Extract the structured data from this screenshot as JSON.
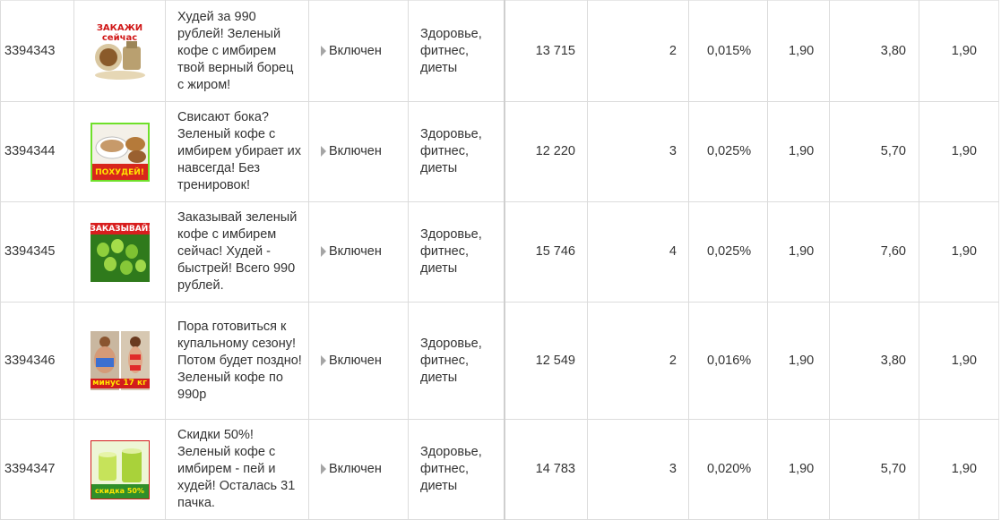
{
  "rows": [
    {
      "id": "3394343",
      "image_icon": "ad-banner-order-now-icon",
      "image_label": "ЗАКАЖИ сейчас",
      "text": "Худей за 990 рублей! Зеленый кофе с имбирем твой верный борец с жиром!",
      "status": "Включен",
      "category": "Здоровье, фитнес, диеты",
      "views": "13 715",
      "clicks": "2",
      "ctr": "0,015%",
      "cpc": "1,90",
      "spent": "3,80",
      "price": "1,90"
    },
    {
      "id": "3394344",
      "image_icon": "ad-banner-tea-cup-icon",
      "image_label": "ПОХУДЕЙ!",
      "text": "Свисают бока? Зеленый кофе с имбирем убирает их навсегда! Без тренировок!",
      "status": "Включен",
      "category": "Здоровье, фитнес, диеты",
      "views": "12 220",
      "clicks": "3",
      "ctr": "0,025%",
      "cpc": "1,90",
      "spent": "5,70",
      "price": "1,90"
    },
    {
      "id": "3394345",
      "image_icon": "ad-banner-coffee-beans-icon",
      "image_label": "ЗАКАЗЫВАЙ!",
      "text": "Заказывай зеленый кофе с имбирем сейчас! Худей - быстрей! Всего 990 рублей.",
      "status": "Включен",
      "category": "Здоровье, фитнес, диеты",
      "views": "15 746",
      "clicks": "4",
      "ctr": "0,025%",
      "cpc": "1,90",
      "spent": "7,60",
      "price": "1,90"
    },
    {
      "id": "3394346",
      "image_icon": "ad-banner-before-after-icon",
      "image_label": "минус 17 кг",
      "text": "Пора готовиться к купальному сезону!Потом будет поздно!Зеленый кофе по 990р",
      "status": "Включен",
      "category": "Здоровье, фитнес, диеты",
      "views": "12 549",
      "clicks": "2",
      "ctr": "0,016%",
      "cpc": "1,90",
      "spent": "3,80",
      "price": "1,90"
    },
    {
      "id": "3394347",
      "image_icon": "ad-banner-green-drink-icon",
      "image_label": "скидка 50%",
      "text": "Скидки 50%! Зеленый кофе с имбирем - пей и худей! Осталась 31 пачка.",
      "status": "Включен",
      "category": "Здоровье, фитнес, диеты",
      "views": "14 783",
      "clicks": "3",
      "ctr": "0,020%",
      "cpc": "1,90",
      "spent": "5,70",
      "price": "1,90"
    }
  ]
}
